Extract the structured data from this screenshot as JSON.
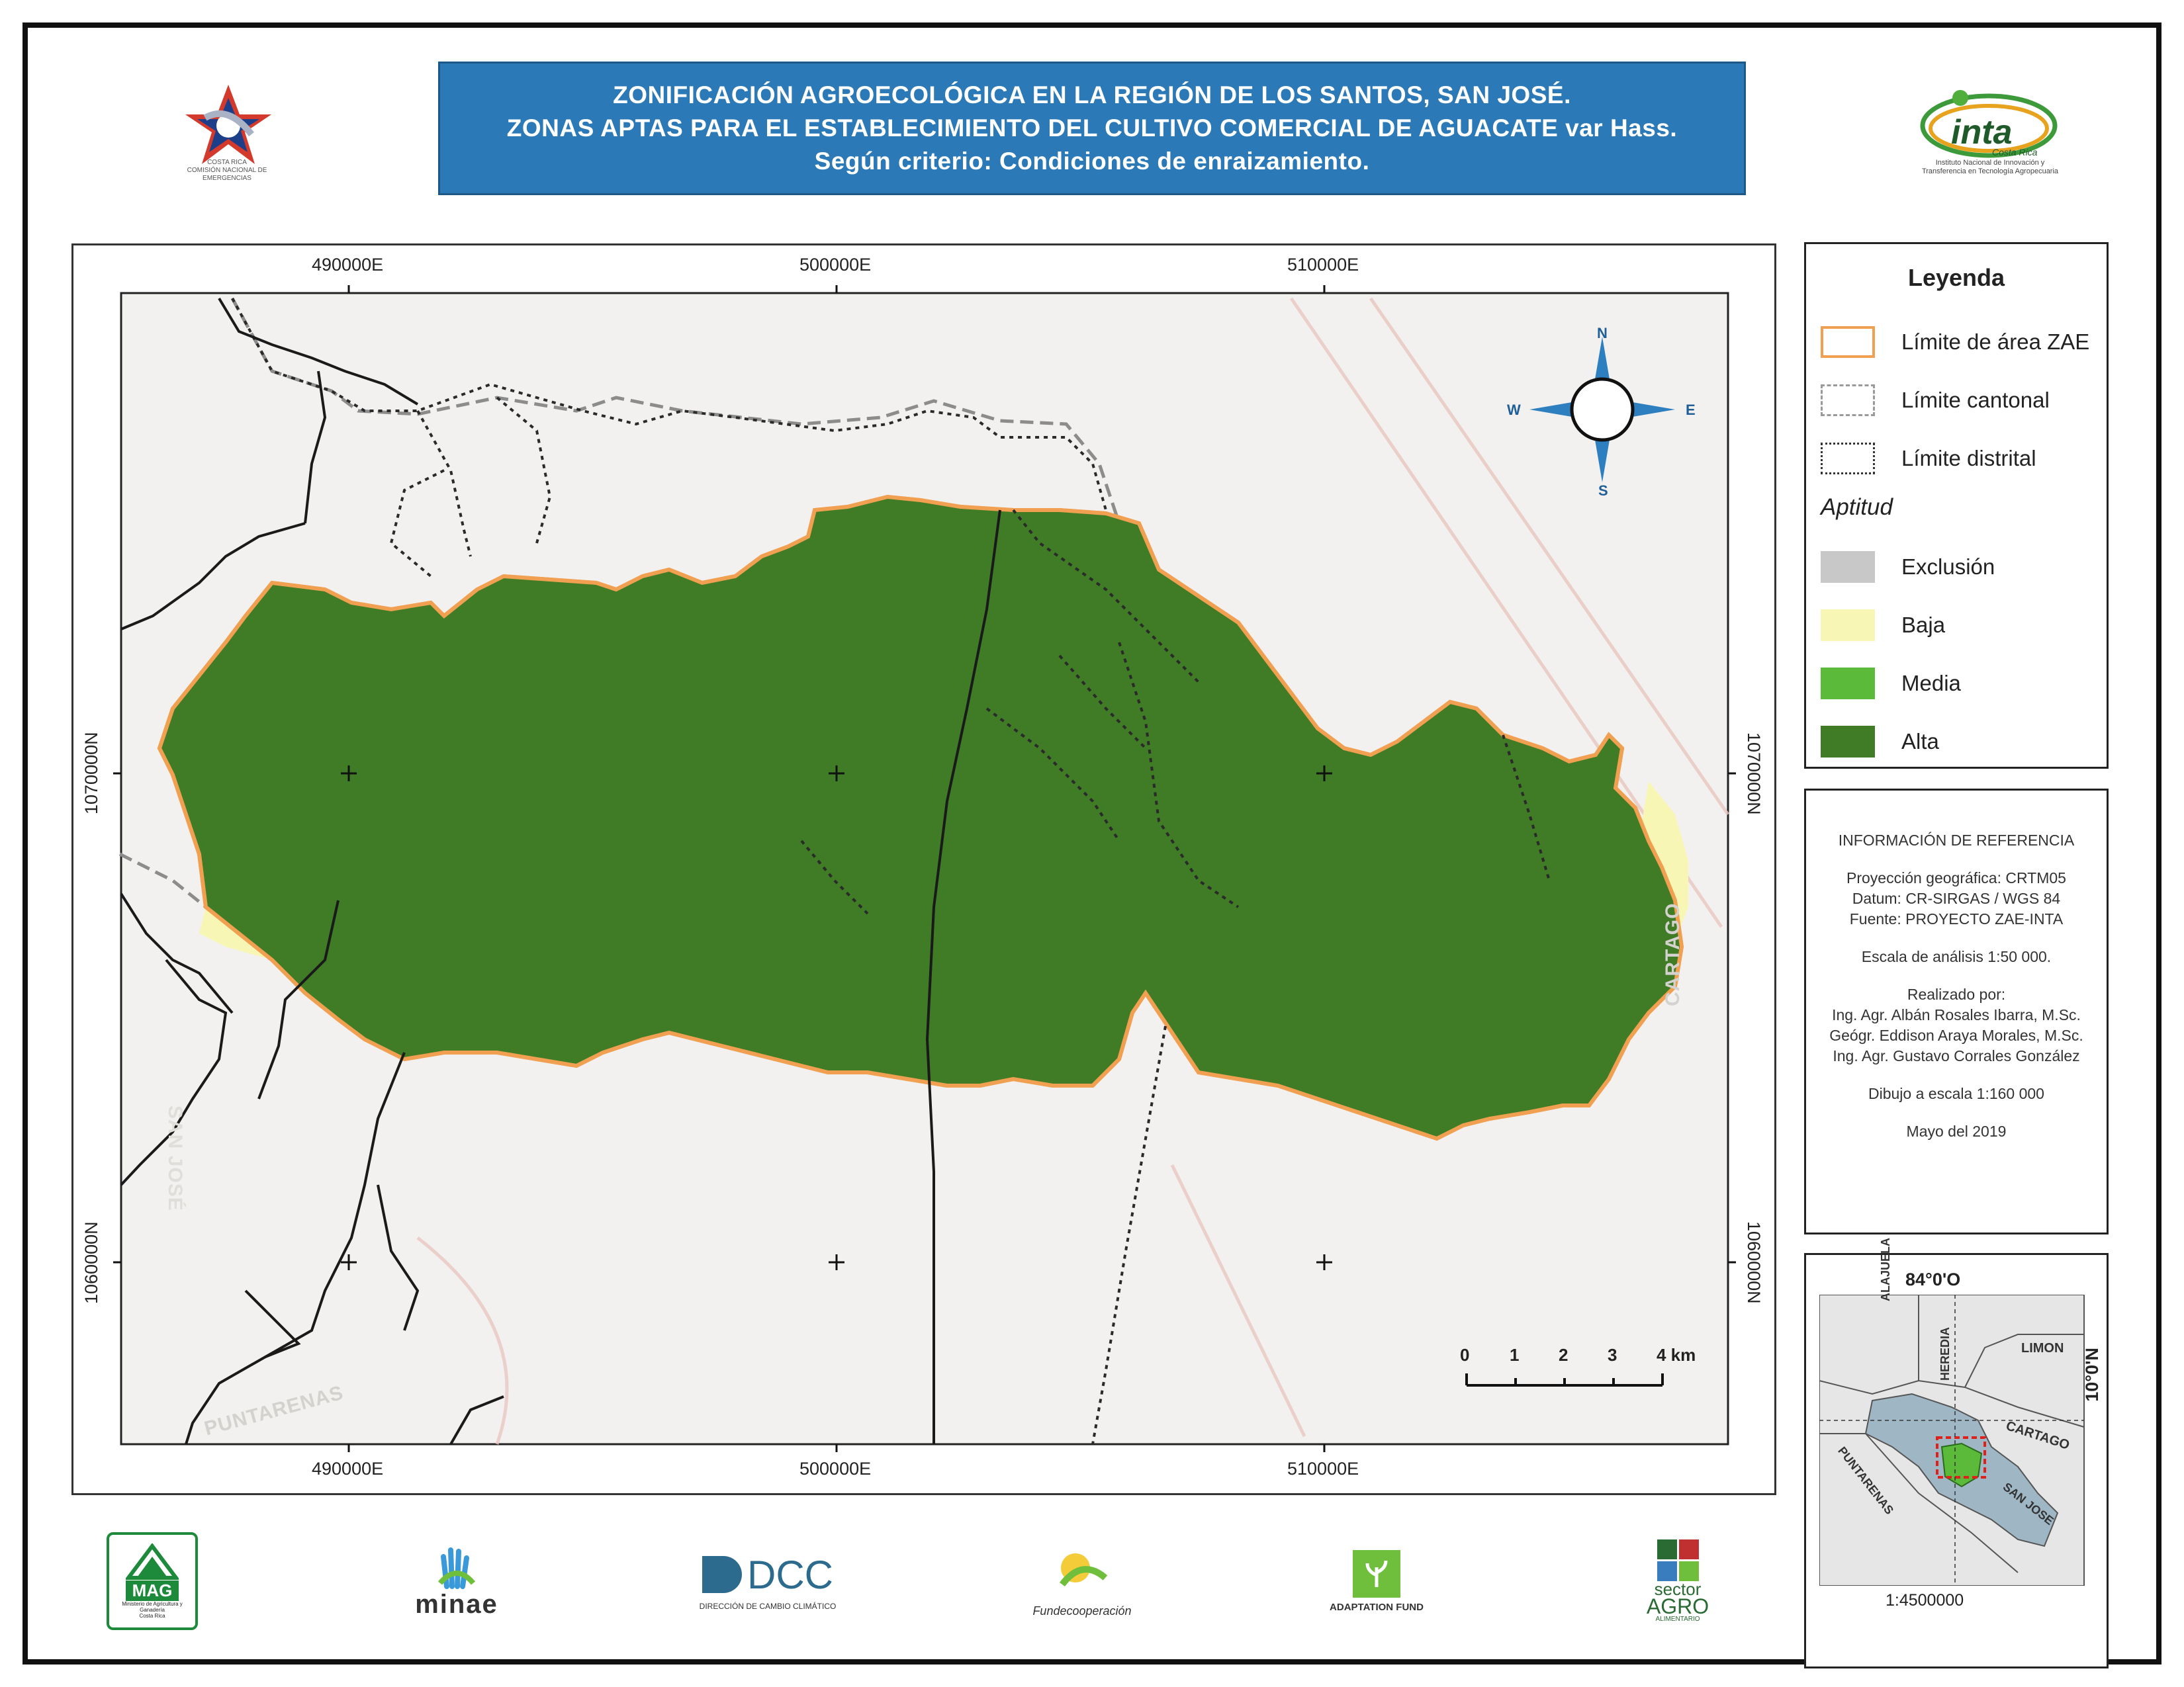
{
  "title": {
    "line1": "ZONIFICACIÓN AGROECOLÓGICA EN LA REGIÓN DE LOS SANTOS, SAN JOSÉ.",
    "line2": "ZONAS APTAS PARA EL ESTABLECIMIENTO DEL CULTIVO COMERCIAL DE AGUACATE var Hass.",
    "line3": "Según criterio: Condiciones de enraizamiento."
  },
  "header_logos": {
    "cne": {
      "caption": "COSTA RICA\nCOMISIÓN NACIONAL DE EMERGENCIAS"
    },
    "inta": {
      "name": "inta",
      "sub": "Costa Rica",
      "caption": "Instituto Nacional de Innovación y\nTransferencia en Tecnología Agropecuaria"
    }
  },
  "map": {
    "coords_top": [
      "490000E",
      "500000E",
      "510000E"
    ],
    "coords_bottom": [
      "490000E",
      "500000E",
      "510000E"
    ],
    "coords_left": [
      "1070000N",
      "1060000N"
    ],
    "coords_right": [
      "1070000N",
      "1060000N"
    ],
    "place_labels": {
      "cartago": "CARTAGO",
      "puntarenas": "PUNTARENAS",
      "san_jose": "SAN JOSÉ"
    },
    "compass": {
      "n": "N",
      "s": "S",
      "e": "E",
      "w": "W"
    },
    "scalebar": {
      "ticks": [
        "0",
        "1",
        "2",
        "3",
        "4 km"
      ]
    }
  },
  "legend": {
    "title": "Leyenda",
    "boundaries": [
      {
        "label": "Límite de área ZAE",
        "style": "solid",
        "color": "#f0a050"
      },
      {
        "label": "Límite cantonal",
        "style": "dashed",
        "color": "#9a9a9a"
      },
      {
        "label": "Límite distrital",
        "style": "dotted",
        "color": "#333333"
      }
    ],
    "aptitud_title": "Aptitud",
    "classes": [
      {
        "label": "Exclusión",
        "color": "#c8c8c8"
      },
      {
        "label": "Baja",
        "color": "#f8f6b4"
      },
      {
        "label": "Media",
        "color": "#5cba3b"
      },
      {
        "label": "Alta",
        "color": "#3f7c25"
      }
    ]
  },
  "info": {
    "heading": "INFORMACIÓN DE REFERENCIA",
    "projection": "Proyección geográfica: CRTM05",
    "datum": "Datum: CR-SIRGAS / WGS 84",
    "source": "Fuente: PROYECTO ZAE-INTA",
    "analysis_scale": "Escala de análisis 1:50 000.",
    "made_by": "Realizado por:",
    "author1": "Ing. Agr. Albán Rosales Ibarra, M.Sc.",
    "author2": "Geógr. Eddison Araya  Morales, M.Sc.",
    "author3": "Ing. Agr. Gustavo Corrales González",
    "drawing_scale": "Dibujo a escala 1:160 000",
    "date": "Mayo del 2019"
  },
  "locator": {
    "lon_label": "84°0'O",
    "lat_label": "10°0'N",
    "scale": "1:4500000",
    "provinces": {
      "alajuela": "ALAJUELA",
      "heredia": "HEREDIA",
      "limon": "LIMON",
      "cartago": "CARTAGO",
      "puntarenas": "PUNTARENAS",
      "san_jose": "SAN JOSE"
    }
  },
  "footer_logos": {
    "mag": {
      "name": "MAG",
      "sub": "Ministerio de Agricultura y Ganadería\nCosta Rica"
    },
    "minae": {
      "name": "minae"
    },
    "dcc": {
      "name": "DCC",
      "sub": "DIRECCIÓN DE CAMBIO CLIMÁTICO"
    },
    "fundecooperacion": {
      "name": "Fundecooperación"
    },
    "adaptation": {
      "name": "ADAPTATION FUND"
    },
    "sector": {
      "line1": "sector",
      "line2": "AGRO",
      "line3": "ALIMENTARIO"
    }
  }
}
